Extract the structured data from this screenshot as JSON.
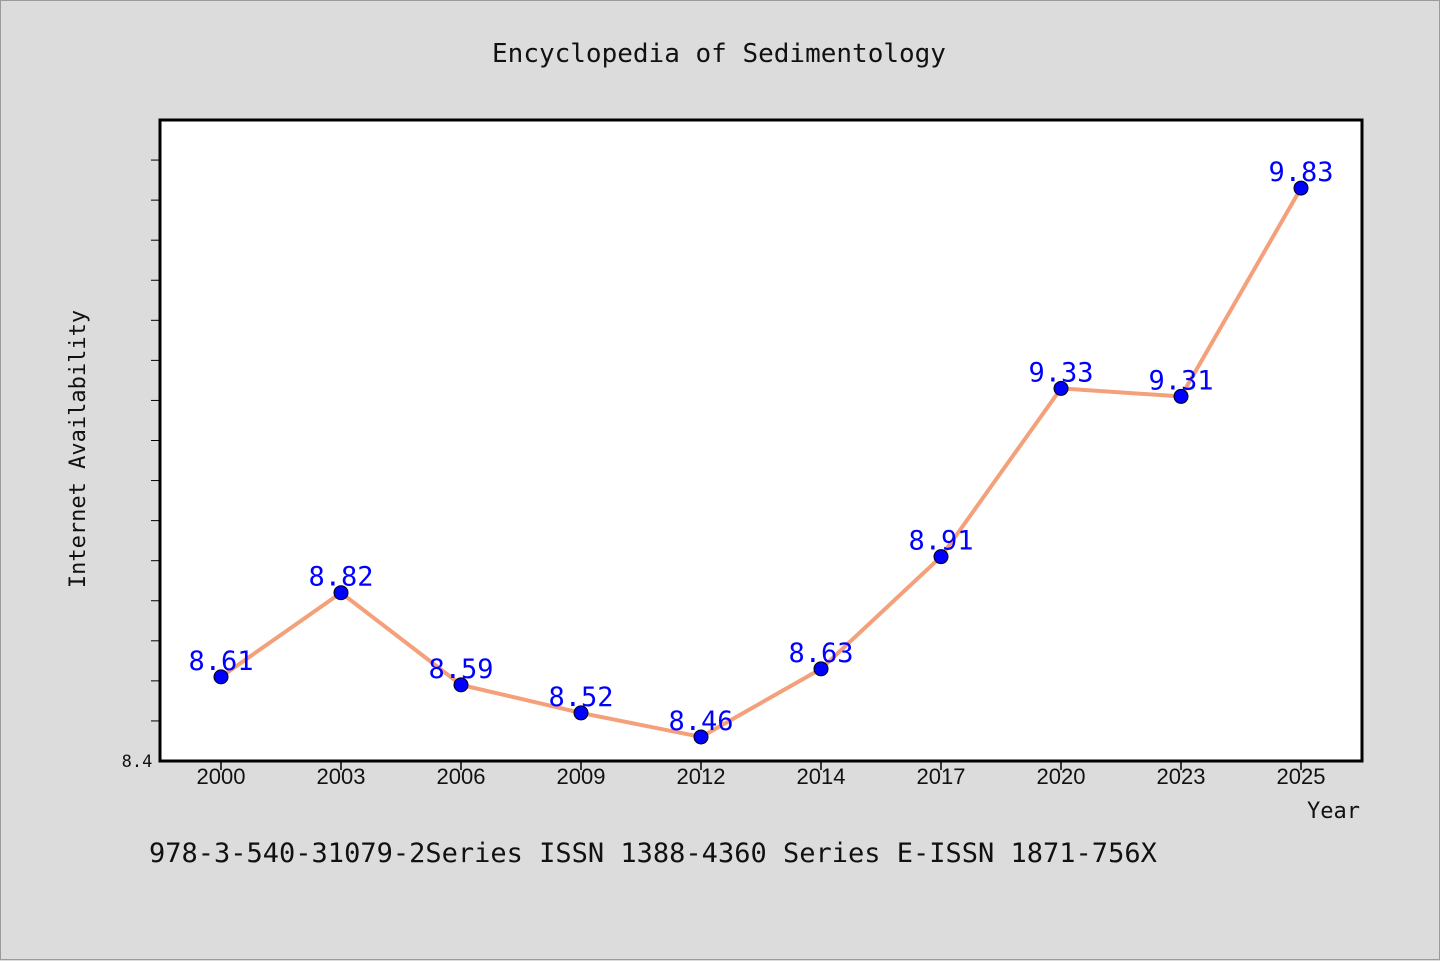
{
  "chart_data": {
    "type": "line",
    "title": "Encyclopedia of Sedimentology",
    "xlabel": "Year",
    "ylabel": "Internet Availability",
    "categories": [
      "2000",
      "2003",
      "2006",
      "2009",
      "2012",
      "2014",
      "2017",
      "2020",
      "2023",
      "2025"
    ],
    "series": [
      {
        "values": [
          8.61,
          8.82,
          8.59,
          8.52,
          8.46,
          8.63,
          8.91,
          9.33,
          9.31,
          9.83
        ],
        "labels": [
          "8.61",
          "8.82",
          "8.59",
          "8.52",
          "8.46",
          "8.63",
          "8.91",
          "9.33",
          "9.31",
          "9.83"
        ],
        "line_color": "#f4a07a",
        "marker_color": "#0000ff"
      }
    ],
    "ylim": [
      8.4,
      10.0
    ],
    "y_min_label": "8.4",
    "grid": false,
    "legend": "none"
  },
  "footer": {
    "text": "978-3-540-31079-2Series ISSN 1388-4360 Series E-ISSN 1871-756X"
  },
  "colors": {
    "background": "#dcdcdc",
    "plot_background": "#ffffff",
    "line": "#f4a07a",
    "marker": "#0000ff",
    "data_label": "#0000ff"
  }
}
